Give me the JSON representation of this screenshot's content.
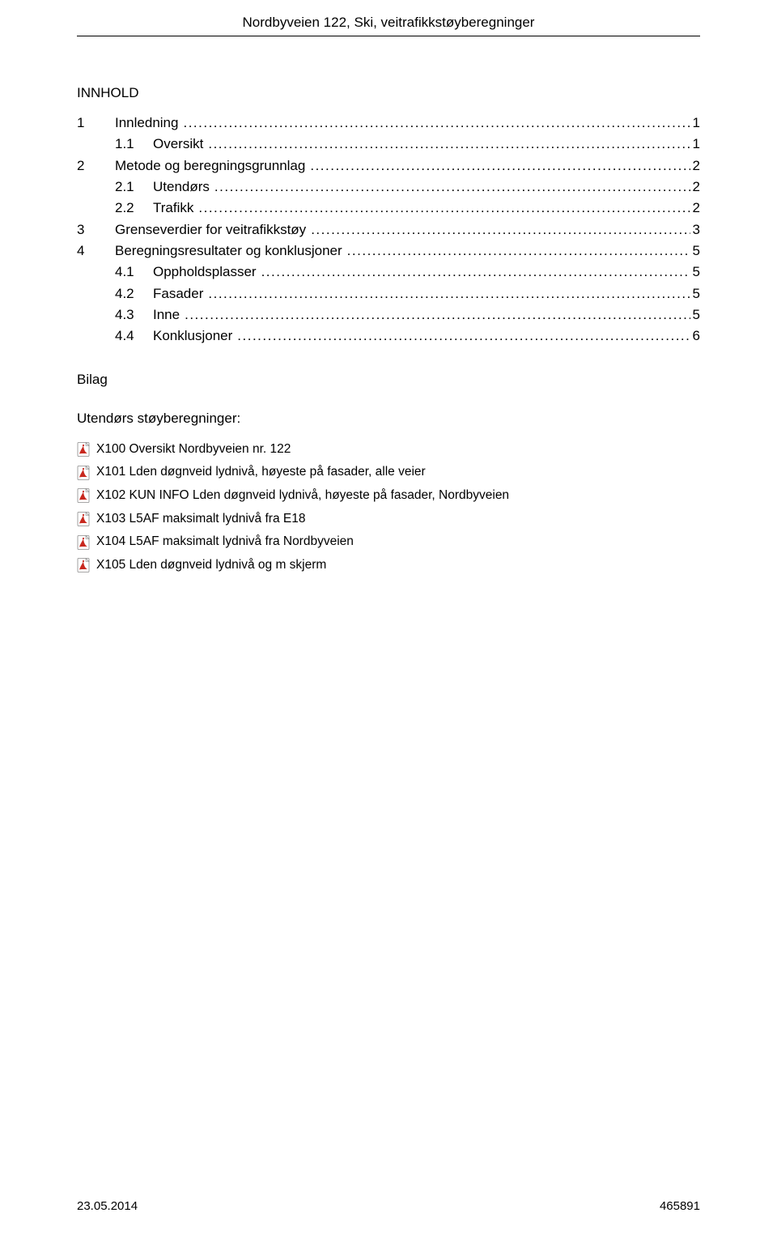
{
  "header": {
    "title": "Nordbyveien 122, Ski, veitrafikkstøyberegninger"
  },
  "toc": {
    "heading": "INNHOLD",
    "entries": [
      {
        "level": 1,
        "num": "1",
        "label": "Innledning",
        "page": "1"
      },
      {
        "level": 2,
        "num": "1.1",
        "label": "Oversikt",
        "page": "1"
      },
      {
        "level": 1,
        "num": "2",
        "label": "Metode og beregningsgrunnlag",
        "page": "2"
      },
      {
        "level": 2,
        "num": "2.1",
        "label": "Utendørs",
        "page": "2"
      },
      {
        "level": 2,
        "num": "2.2",
        "label": "Trafikk",
        "page": "2"
      },
      {
        "level": 1,
        "num": "3",
        "label": "Grenseverdier for veitrafikkstøy",
        "page": "3"
      },
      {
        "level": 1,
        "num": "4",
        "label": "Beregningsresultater og konklusjoner",
        "page": "5"
      },
      {
        "level": 2,
        "num": "4.1",
        "label": "Oppholdsplasser",
        "page": "5"
      },
      {
        "level": 2,
        "num": "4.2",
        "label": "Fasader",
        "page": "5"
      },
      {
        "level": 2,
        "num": "4.3",
        "label": "Inne",
        "page": "5"
      },
      {
        "level": 2,
        "num": "4.4",
        "label": "Konklusjoner",
        "page": "6"
      }
    ]
  },
  "bilag": {
    "heading": "Bilag",
    "subheading": "Utendørs støyberegninger:",
    "files": [
      {
        "name": "X100 Oversikt Nordbyveien nr. 122"
      },
      {
        "name": "X101 Lden døgnveid lydnivå, høyeste på fasader, alle veier"
      },
      {
        "name": "X102 KUN INFO Lden døgnveid lydnivå, høyeste på fasader, Nordbyveien"
      },
      {
        "name": "X103 L5AF maksimalt lydnivå fra E18"
      },
      {
        "name": "X104 L5AF maksimalt lydnivå fra Nordbyveien"
      },
      {
        "name": "X105 Lden døgnveid lydnivå og m skjerm"
      }
    ]
  },
  "footer": {
    "date": "23.05.2014",
    "docnum": "465891"
  },
  "colors": {
    "pdf_icon_red": "#c8281e",
    "pdf_icon_white": "#ffffff",
    "pdf_icon_border": "#8a8a8a",
    "text": "#000000"
  }
}
